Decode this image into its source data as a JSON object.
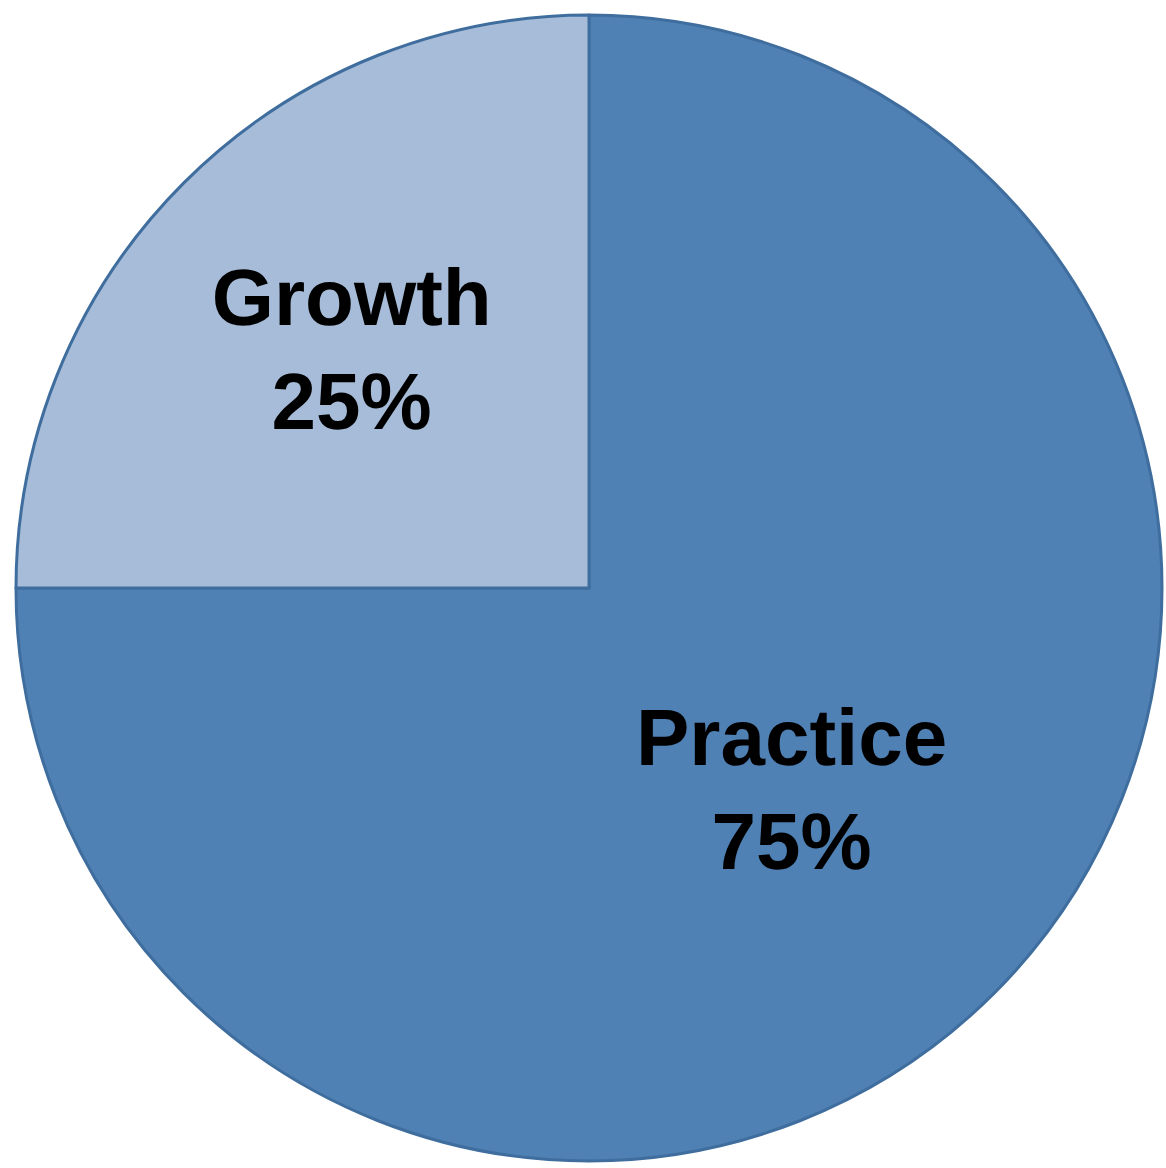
{
  "chart_data": {
    "type": "pie",
    "categories": [
      "Practice",
      "Growth"
    ],
    "values": [
      75,
      25
    ],
    "colors": [
      "#4f81b5",
      "#a7bcd9"
    ],
    "value_labels": [
      "75%",
      "25%"
    ],
    "legend": false
  }
}
